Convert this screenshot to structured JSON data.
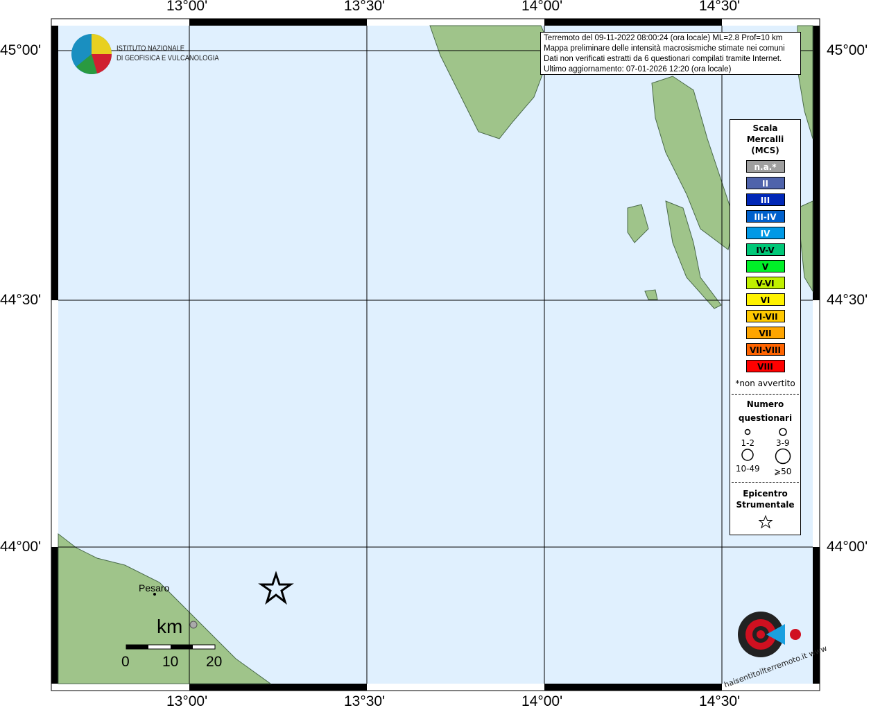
{
  "map": {
    "lon_ticks": [
      "13°00'",
      "13°30'",
      "14°00'",
      "14°30'"
    ],
    "lat_ticks": [
      "45°00'",
      "44°30'",
      "44°00'"
    ],
    "place": "Pesaro",
    "scale": {
      "unit": "km",
      "labels": [
        "0",
        "10",
        "20"
      ]
    },
    "colors": {
      "sea": "#e0f0fe",
      "land": "#9fc48a"
    }
  },
  "info": {
    "line1": "Terremoto del 09-11-2022 08:00:24 (ora locale) ML=2.8 Prof=10 km",
    "line2": "Mappa preliminare delle intensità macrosismiche stimate nei comuni",
    "line3": "Dati non verificati estratti da 6 questionari compilati tramite Internet.",
    "line4": "Ultimo aggiornamento: 07-01-2026 12:20 (ora locale)"
  },
  "logo": {
    "line1": "ISTITUTO NAZIONALE",
    "line2": "DI GEOFISICA E VULCANOLOGIA",
    "hsit": "haisentitoilterremoto.it www"
  },
  "legend": {
    "title": [
      "Scala",
      "Mercalli",
      "(MCS)"
    ],
    "classes": [
      {
        "label": "n.a.*",
        "color": "#9f9f9f",
        "text": "#fff"
      },
      {
        "label": "II",
        "color": "#4f63ab",
        "text": "#fff"
      },
      {
        "label": "III",
        "color": "#0027b7",
        "text": "#fff"
      },
      {
        "label": "III-IV",
        "color": "#0060cc",
        "text": "#fff"
      },
      {
        "label": "IV",
        "color": "#0099e6",
        "text": "#fff"
      },
      {
        "label": "IV-V",
        "color": "#00c878",
        "text": "#000"
      },
      {
        "label": "V",
        "color": "#00f028",
        "text": "#000"
      },
      {
        "label": "V-VI",
        "color": "#c0f000",
        "text": "#000"
      },
      {
        "label": "VI",
        "color": "#fff200",
        "text": "#000"
      },
      {
        "label": "VI-VII",
        "color": "#ffc800",
        "text": "#000"
      },
      {
        "label": "VII",
        "color": "#ffa500",
        "text": "#000"
      },
      {
        "label": "VII-VIII",
        "color": "#ff6400",
        "text": "#000"
      },
      {
        "label": "VIII",
        "color": "#ff0000",
        "text": "#000"
      }
    ],
    "note": "*non avvertito",
    "count_title": [
      "Numero",
      "questionari"
    ],
    "counts": [
      "1-2",
      "3-9",
      "10-49",
      "⩾50"
    ],
    "epi_title": [
      "Epicentro",
      "Strumentale"
    ]
  }
}
